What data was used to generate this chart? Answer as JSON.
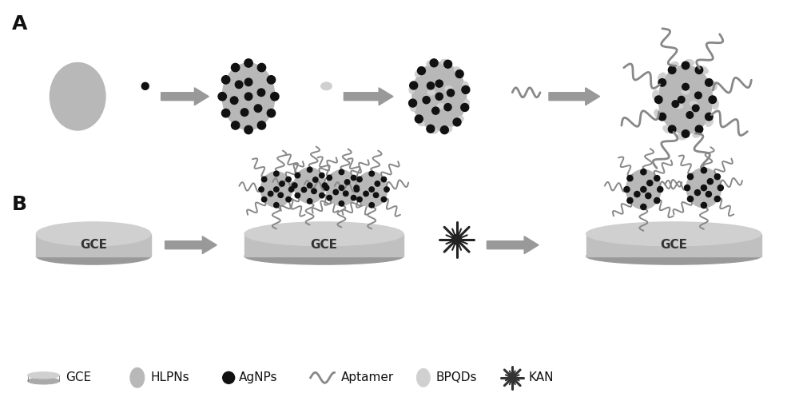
{
  "bg_color": "#ffffff",
  "label_A": "A",
  "label_B": "B",
  "gce_color": "#b8b8b8",
  "hlpn_color": "#b8b8b8",
  "agnp_color": "#111111",
  "bpqd_color": "#d0d0d0",
  "aptamer_color": "#888888",
  "arrow_color": "#999999",
  "text_color": "#111111",
  "legend_items": [
    "GCE",
    "HLPNs",
    "AgNPs",
    "Aptamer",
    "BPQDs",
    "KAN"
  ],
  "font_size": 11,
  "label_font_size": 18
}
